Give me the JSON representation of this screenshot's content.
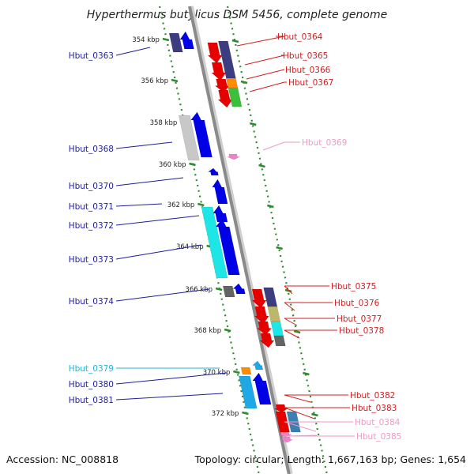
{
  "title": "Hyperthermus butylicus DSM 5456, complete genome",
  "footer": {
    "accession": "Accession: NC_008818",
    "topology": "Topology: circular; Length: 1,667,163 bp; Genes: 1,654"
  },
  "scale_labels": [
    "354 kbp",
    "356 kbp",
    "358 kbp",
    "360 kbp",
    "362 kbp",
    "364 kbp",
    "366 kbp",
    "368 kbp",
    "370 kbp",
    "372 kbp"
  ],
  "genes_left": [
    {
      "label": "Hbut_0363",
      "color": "#1f1f99"
    },
    {
      "label": "Hbut_0368",
      "color": "#1f1f99"
    },
    {
      "label": "Hbut_0370",
      "color": "#1f1f99"
    },
    {
      "label": "Hbut_0371",
      "color": "#1f1f99"
    },
    {
      "label": "Hbut_0372",
      "color": "#1f1f99"
    },
    {
      "label": "Hbut_0373",
      "color": "#1f1f99"
    },
    {
      "label": "Hbut_0374",
      "color": "#1f1f99"
    },
    {
      "label": "Hbut_0379",
      "color": "#27b3d6"
    },
    {
      "label": "Hbut_0380",
      "color": "#1f1f99"
    },
    {
      "label": "Hbut_0381",
      "color": "#1f1f99"
    }
  ],
  "genes_right": [
    {
      "label": "Hbut_0364",
      "color": "#d11f1f"
    },
    {
      "label": "Hbut_0365",
      "color": "#d11f1f"
    },
    {
      "label": "Hbut_0366",
      "color": "#d11f1f"
    },
    {
      "label": "Hbut_0367",
      "color": "#d11f1f"
    },
    {
      "label": "Hbut_0369",
      "color": "#ee99c4"
    },
    {
      "label": "Hbut_0375",
      "color": "#d11f1f"
    },
    {
      "label": "Hbut_0376",
      "color": "#d11f1f"
    },
    {
      "label": "Hbut_0377",
      "color": "#d11f1f"
    },
    {
      "label": "Hbut_0378",
      "color": "#d11f1f"
    },
    {
      "label": "Hbut_0382",
      "color": "#d11f1f"
    },
    {
      "label": "Hbut_0383",
      "color": "#d11f1f"
    },
    {
      "label": "Hbut_0384",
      "color": "#ee99c4"
    },
    {
      "label": "Hbut_0385",
      "color": "#ee99c4"
    }
  ],
  "colors": {
    "backbone": "#8a8a8a",
    "scale_dash": "#2e8a2e",
    "forward_strand": "#0000e6",
    "reverse_strand": "#e60000",
    "cog_purple": "#3c3c80",
    "cog_orange": "#ff8c00",
    "cog_green": "#3cbf3c",
    "cog_cyan": "#1ee6e6",
    "cog_olive": "#bdb76b",
    "cog_gray": "#646464",
    "cog_light_gray": "#c8c8c8",
    "cog_steel": "#3c7fb3",
    "cog_sky": "#1ea8e6",
    "rna_pink": "#ee82c8"
  }
}
